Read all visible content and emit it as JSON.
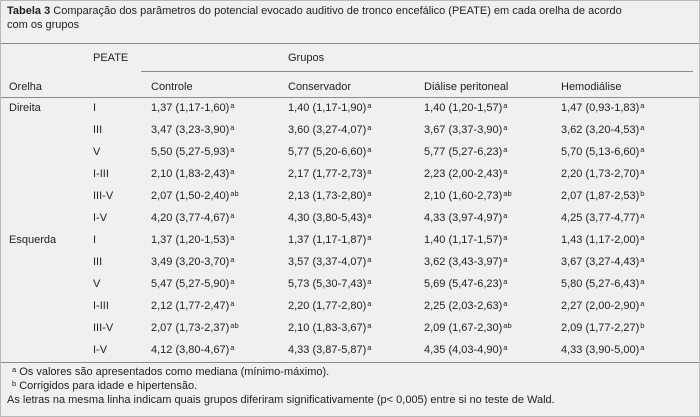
{
  "title": {
    "label": "Tabela 3",
    "line1": "Comparação dos parâmetros do potencial evocado auditivo de tronco encefálico (PEATE) em cada orelha de acordo",
    "line2": "com os grupos"
  },
  "header": {
    "peate": "PEATE",
    "grupos": "Grupos",
    "orelha": "Orelha",
    "columns": [
      "Controle",
      "Conservador",
      "Diálise peritoneal",
      "Hemodiálise"
    ]
  },
  "groups": [
    {
      "ear": "Direita",
      "rows": [
        {
          "measure": "I",
          "cells": [
            {
              "value": "1,37 (1,17-1,60)",
              "sup": "a"
            },
            {
              "value": "1,40 (1,17-1,90)",
              "sup": "a"
            },
            {
              "value": "1,40 (1,20-1,57)",
              "sup": "a"
            },
            {
              "value": "1,47 (0,93-1,83)",
              "sup": "a"
            }
          ]
        },
        {
          "measure": "III",
          "cells": [
            {
              "value": "3,47 (3,23-3,90)",
              "sup": "a"
            },
            {
              "value": "3,60 (3,27-4,07)",
              "sup": "a"
            },
            {
              "value": "3,67 (3,37-3,90)",
              "sup": "a"
            },
            {
              "value": "3,62 (3,20-4,53)",
              "sup": "a"
            }
          ]
        },
        {
          "measure": "V",
          "cells": [
            {
              "value": "5,50 (5,27-5,93)",
              "sup": "a"
            },
            {
              "value": "5,77 (5,20-6,60)",
              "sup": "a"
            },
            {
              "value": "5,77 (5,27-6,23)",
              "sup": "a"
            },
            {
              "value": "5,70 (5,13-6,60)",
              "sup": "a"
            }
          ]
        },
        {
          "measure": "I-III",
          "cells": [
            {
              "value": "2,10 (1,83-2,43)",
              "sup": "a"
            },
            {
              "value": "2,17 (1,77-2,73)",
              "sup": "a"
            },
            {
              "value": "2,23 (2,00-2,43)",
              "sup": "a"
            },
            {
              "value": "2,20 (1,73-2,70)",
              "sup": "a"
            }
          ]
        },
        {
          "measure": "III-V",
          "cells": [
            {
              "value": "2,07 (1,50-2,40)",
              "sup": "ab"
            },
            {
              "value": "2,13 (1,73-2,80)",
              "sup": "a"
            },
            {
              "value": "2,10 (1,60-2,73)",
              "sup": "ab"
            },
            {
              "value": "2,07 (1,87-2,53)",
              "sup": "b"
            }
          ]
        },
        {
          "measure": "I-V",
          "cells": [
            {
              "value": "4,20 (3,77-4,67)",
              "sup": "a"
            },
            {
              "value": "4,30 (3,80-5,43)",
              "sup": "a"
            },
            {
              "value": "4,33 (3,97-4,97)",
              "sup": "a"
            },
            {
              "value": "4,25 (3,77-4,77)",
              "sup": "a"
            }
          ]
        }
      ]
    },
    {
      "ear": "Esquerda",
      "rows": [
        {
          "measure": "I",
          "cells": [
            {
              "value": "1,37 (1,20-1,53)",
              "sup": "a"
            },
            {
              "value": "1,37 (1,17-1,87)",
              "sup": "a"
            },
            {
              "value": "1,40 (1,17-1,57)",
              "sup": "a"
            },
            {
              "value": "1,43 (1,17-2,00)",
              "sup": "a"
            }
          ]
        },
        {
          "measure": "III",
          "cells": [
            {
              "value": "3,49 (3,20-3,70)",
              "sup": "a"
            },
            {
              "value": "3,57 (3,37-4,07)",
              "sup": "a"
            },
            {
              "value": "3,62 (3,43-3,97)",
              "sup": "a"
            },
            {
              "value": "3,67 (3,27-4,43)",
              "sup": "a"
            }
          ]
        },
        {
          "measure": "V",
          "cells": [
            {
              "value": "5,47 (5,27-5,90)",
              "sup": "a"
            },
            {
              "value": "5,73 (5,30-7,43)",
              "sup": "a"
            },
            {
              "value": "5,69 (5,47-6,23)",
              "sup": "a"
            },
            {
              "value": "5,80 (5,27-6,43)",
              "sup": "a"
            }
          ]
        },
        {
          "measure": "I-III",
          "cells": [
            {
              "value": "2,12 (1,77-2,47)",
              "sup": "a"
            },
            {
              "value": "2,20 (1,77-2,80)",
              "sup": "a"
            },
            {
              "value": "2,25 (2,03-2,63)",
              "sup": "a"
            },
            {
              "value": "2,27 (2,00-2,90)",
              "sup": "a"
            }
          ]
        },
        {
          "measure": "III-V",
          "cells": [
            {
              "value": "2,07 (1,73-2,37)",
              "sup": "ab"
            },
            {
              "value": "2,10 (1,83-3,67)",
              "sup": "a"
            },
            {
              "value": "2,09 (1,67-2,30)",
              "sup": "ab"
            },
            {
              "value": "2,09 (1,77-2,27)",
              "sup": "b"
            }
          ]
        },
        {
          "measure": "I-V",
          "cells": [
            {
              "value": "4,12 (3,80-4,67)",
              "sup": "a"
            },
            {
              "value": "4,33 (3,87-5,87)",
              "sup": "a"
            },
            {
              "value": "4,35 (4,03-4,90)",
              "sup": "a"
            },
            {
              "value": "4,33 (3,90-5,00)",
              "sup": "a"
            }
          ]
        }
      ]
    }
  ],
  "footnotes": [
    {
      "sup": "a",
      "text": "Os valores são apresentados como mediana (mínimo-máximo)."
    },
    {
      "sup": "b",
      "text": "Corrigidos para idade e hipertensão."
    },
    {
      "text": "As letras na mesma linha indicam quais grupos diferiram significativamente (p< 0,005) entre si no teste de Wald."
    }
  ]
}
